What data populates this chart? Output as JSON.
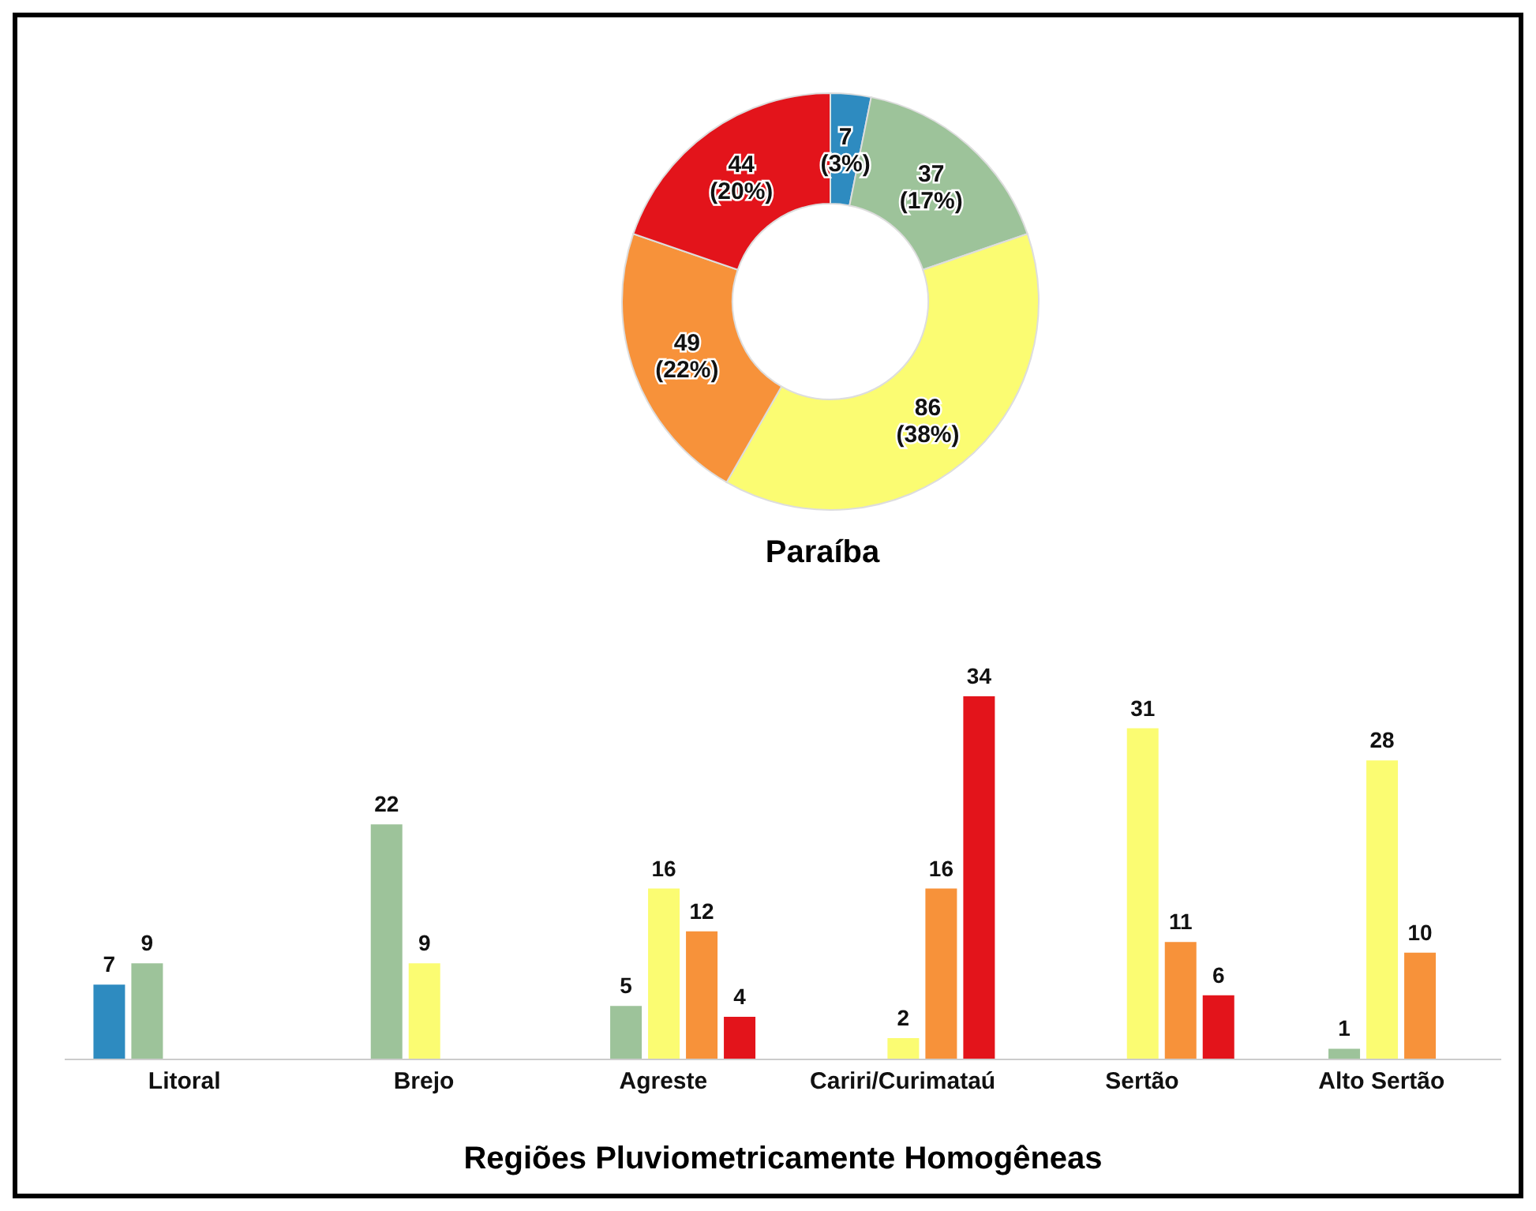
{
  "chart_data": [
    {
      "type": "donut",
      "title": "Paraíba",
      "categories": [
        null,
        null,
        null,
        null,
        null
      ],
      "values": [
        7,
        37,
        86,
        49,
        44
      ],
      "colors": [
        "#2e8bc0",
        "#9dc39a",
        "#fbfc72",
        "#f7923a",
        "#e3141b"
      ],
      "value_labels": [
        "7 (3%)",
        "37 (17%)",
        "86 (38%)",
        "49 (22%)",
        "44 (20%)"
      ]
    },
    {
      "type": "bar",
      "xlabel": "Regiões Pluviometricamente Homogêneas",
      "categories": [
        "Litoral",
        "Brejo",
        "Agreste",
        "Cariri/Curimataú",
        "Sertão",
        "Alto Sertão"
      ],
      "data_labels": true,
      "series": [
        {
          "color": "#2e8bc0",
          "values": [
            7,
            null,
            null,
            null,
            null,
            null
          ]
        },
        {
          "color": "#9dc39a",
          "values": [
            9,
            22,
            5,
            null,
            null,
            1
          ]
        },
        {
          "color": "#fbfc72",
          "values": [
            null,
            9,
            16,
            2,
            31,
            28
          ]
        },
        {
          "color": "#f7923a",
          "values": [
            null,
            null,
            12,
            16,
            11,
            10
          ]
        },
        {
          "color": "#e3141b",
          "values": [
            null,
            null,
            4,
            34,
            6,
            null
          ]
        }
      ]
    }
  ]
}
